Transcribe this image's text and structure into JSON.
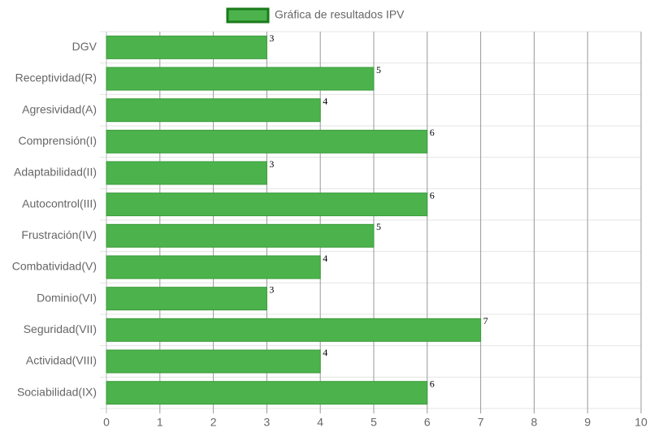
{
  "chart_data": {
    "type": "bar",
    "orientation": "horizontal",
    "categories": [
      "DGV",
      "Receptividad(R)",
      "Agresividad(A)",
      "Comprensión(I)",
      "Adaptabilidad(II)",
      "Autocontrol(III)",
      "Frustración(IV)",
      "Combatividad(V)",
      "Dominio(VI)",
      "Seguridad(VII)",
      "Actividad(VIII)",
      "Sociabilidad(IX)"
    ],
    "series": [
      {
        "name": "Gráfica de resultados IPV",
        "color": "#4cb34c",
        "border_color": "#1a7a1a",
        "values": [
          3,
          5,
          4,
          6,
          3,
          6,
          5,
          4,
          3,
          7,
          4,
          6
        ]
      }
    ],
    "xlim": [
      0,
      10
    ],
    "xticks": [
      0,
      1,
      2,
      3,
      4,
      5,
      6,
      7,
      8,
      9,
      10
    ],
    "grid": true,
    "legend": "top",
    "data_labels": true
  }
}
